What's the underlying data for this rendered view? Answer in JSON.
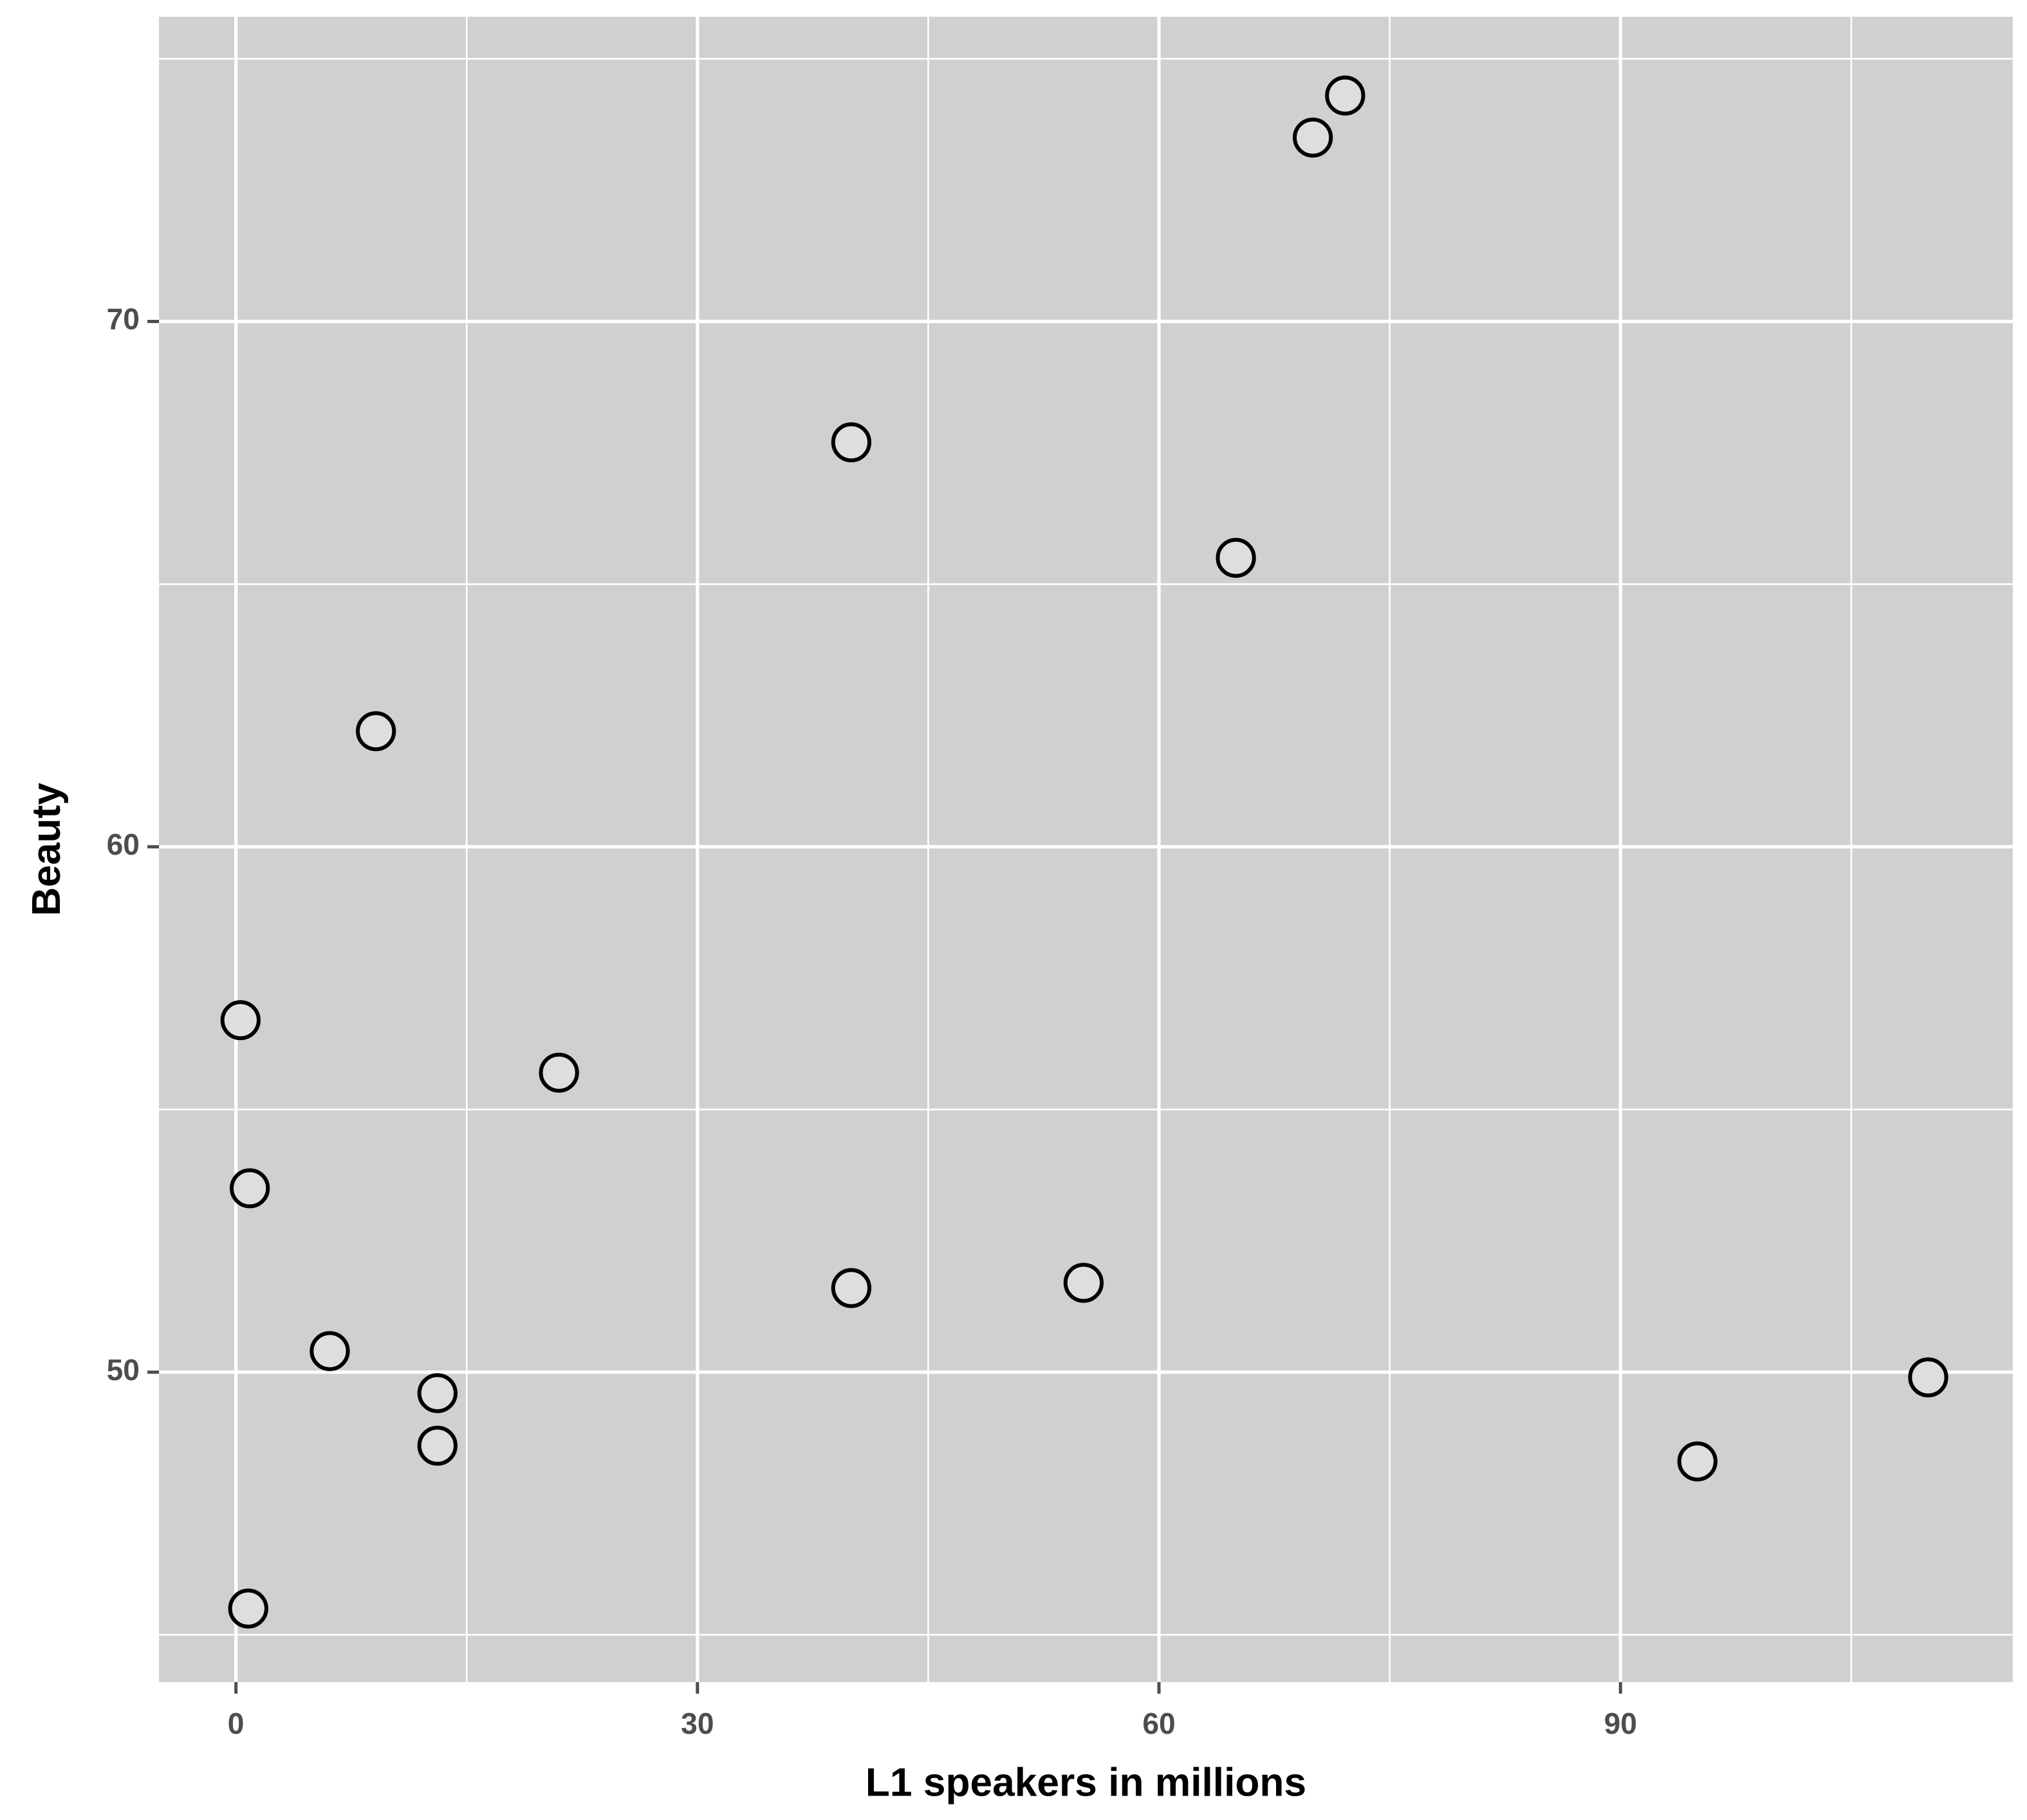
{
  "chart_data": {
    "type": "scatter",
    "x_label": "L1 speakers in millions",
    "y_label": "Beauty",
    "x": [
      72.1,
      70.0,
      40.0,
      65.0,
      9.1,
      0.3,
      21.0,
      0.9,
      55.1,
      40.0,
      6.1,
      13.1,
      13.1,
      110.0,
      95.0,
      0.8
    ],
    "values": [
      74.3,
      73.5,
      67.7,
      65.5,
      62.2,
      56.7,
      55.7,
      53.5,
      51.7,
      51.6,
      50.4,
      49.6,
      48.6,
      49.9,
      48.3,
      45.5
    ],
    "color": "#000000",
    "xlim": [
      -5,
      115.5
    ],
    "ylim": [
      44.1,
      75.8
    ],
    "xticks": [
      0,
      30,
      60,
      90
    ],
    "yticks": [
      50,
      60,
      70
    ],
    "grid": true
  }
}
